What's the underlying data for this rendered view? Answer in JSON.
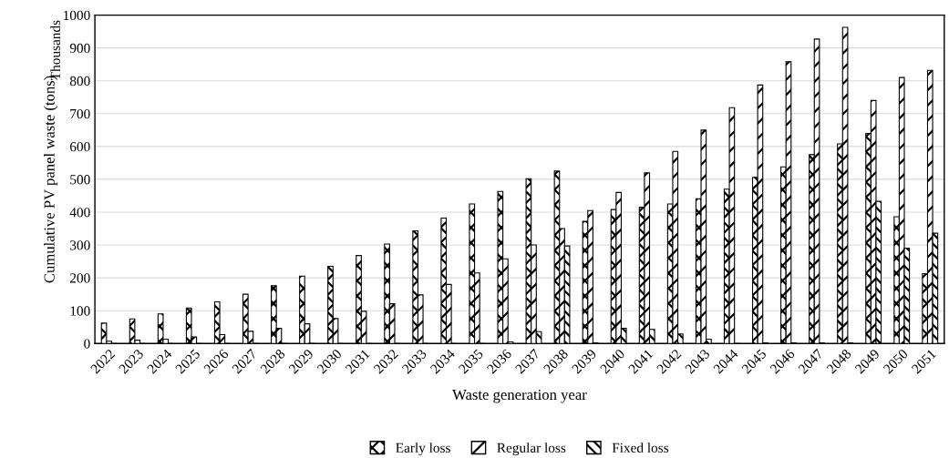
{
  "chart_data": {
    "type": "bar",
    "xlabel": "Waste generation year",
    "ylabel": "Cumulative PV panel waste (tons)",
    "annotations": [
      "Thousands"
    ],
    "categories": [
      "2022",
      "2023",
      "2024",
      "2025",
      "2026",
      "2027",
      "2028",
      "2029",
      "2030",
      "2031",
      "2032",
      "2033",
      "2034",
      "2035",
      "2036",
      "2037",
      "2038",
      "2039",
      "2040",
      "2041",
      "2042",
      "2043",
      "2044",
      "2045",
      "2046",
      "2047",
      "2048",
      "2049",
      "2050",
      "2051"
    ],
    "series": [
      {
        "name": "Early loss",
        "color": "#000000",
        "values": [
          62,
          75,
          90,
          108,
          127,
          150,
          176,
          205,
          235,
          268,
          303,
          343,
          382,
          425,
          463,
          502,
          525,
          372,
          408,
          415,
          425,
          441,
          470,
          506,
          538,
          575,
          608,
          640,
          386,
          213
        ]
      },
      {
        "name": "Regular loss",
        "color": "#000000",
        "values": [
          7,
          10,
          13,
          20,
          27,
          37,
          46,
          60,
          76,
          98,
          121,
          148,
          180,
          215,
          258,
          300,
          350,
          405,
          460,
          520,
          585,
          650,
          718,
          787,
          858,
          927,
          963,
          740,
          810,
          832
        ]
      },
      {
        "name": "Fixed loss",
        "color": "#000000",
        "values": [
          0,
          0,
          0,
          0,
          0,
          0,
          0,
          0,
          0,
          0,
          0,
          0,
          0,
          null,
          5,
          36,
          297,
          2,
          46,
          43,
          29,
          13,
          null,
          2,
          2,
          2,
          2,
          433,
          290,
          336
        ]
      }
    ],
    "ylim": [
      0,
      1000
    ],
    "yticks": [
      0,
      100,
      200,
      300,
      400,
      500,
      600,
      700,
      800,
      900,
      1000
    ],
    "grid": "y",
    "legend": "bottom"
  }
}
